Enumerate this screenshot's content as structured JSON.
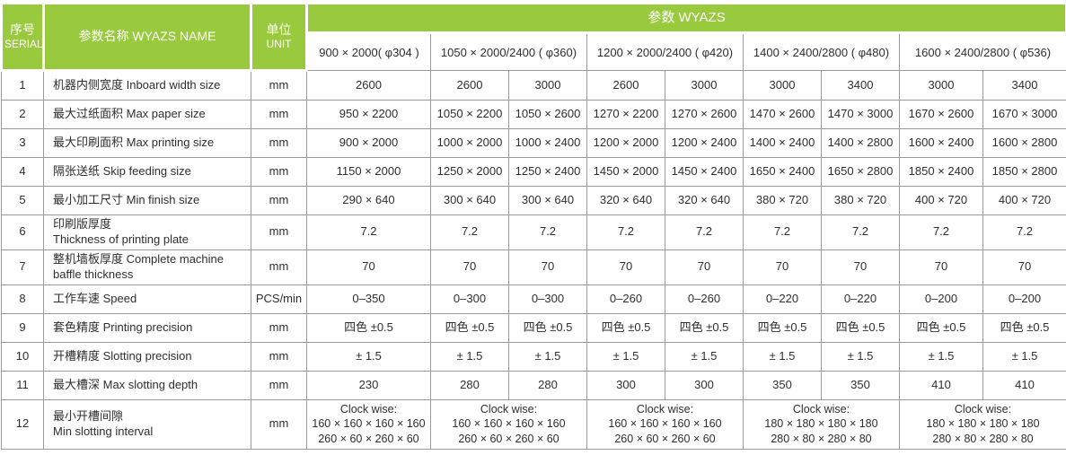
{
  "colors": {
    "header_green": "#99c93c",
    "grid_line": "#999999",
    "header_text": "#ffffff",
    "body_text": "#2e2e2e"
  },
  "table": {
    "header": {
      "serial_zh": "序号",
      "serial_en": "SERIAL",
      "name_label": "参数名称 WYAZS NAME",
      "unit_zh": "单位",
      "unit_en": "UNIT",
      "params_group_label": "参数 WYAZS",
      "models": [
        {
          "label": "900 × 2000( φ304 )",
          "span": 1
        },
        {
          "label": "1050 × 2000/2400 ( φ360)",
          "span": 2
        },
        {
          "label": "1200 × 2000/2400 ( φ420)",
          "span": 2
        },
        {
          "label": "1400 × 2400/2800 ( φ480)",
          "span": 2
        },
        {
          "label": "1600 × 2400/2800 ( φ536)",
          "span": 2
        }
      ]
    },
    "rows": [
      {
        "serial": "1",
        "label_lines": [
          "机器内侧宽度 Inboard width size"
        ],
        "unit": "mm",
        "cells": [
          "2600",
          "2600",
          "3000",
          "2600",
          "3000",
          "3000",
          "3400",
          "3000",
          "3400"
        ]
      },
      {
        "serial": "2",
        "label_lines": [
          "最大过纸面积 Max paper size"
        ],
        "unit": "mm",
        "cells": [
          "950 × 2200",
          "1050 × 2200",
          "1050 × 2600",
          "1270 × 2200",
          "1270 × 2600",
          "1470 × 2600",
          "1470 × 3000",
          "1670 × 2600",
          "1670 × 3000"
        ]
      },
      {
        "serial": "3",
        "label_lines": [
          "最大印刷面积 Max printing size"
        ],
        "unit": "mm",
        "cells": [
          "900 × 2000",
          "1000 × 2000",
          "1000 × 2400",
          "1200 × 2000",
          "1200 × 2400",
          "1400 × 2400",
          "1400 × 2800",
          "1600 × 2400",
          "1600 × 2800"
        ]
      },
      {
        "serial": "4",
        "label_lines": [
          "隔张送纸 Skip feeding size"
        ],
        "unit": "mm",
        "cells": [
          "1150 × 2000",
          "1250 × 2000",
          "1250 × 2400",
          "1450 × 2000",
          "1450 × 2400",
          "1650 × 2400",
          "1650 × 2800",
          "1850 × 2400",
          "1850 × 2800"
        ]
      },
      {
        "serial": "5",
        "label_lines": [
          "最小加工尺寸 Min finish size"
        ],
        "unit": "mm",
        "cells": [
          "290 × 640",
          "300 × 640",
          "300 × 640",
          "320 × 640",
          "320 × 640",
          "380 × 720",
          "380 × 720",
          "400 × 720",
          "400 × 720"
        ]
      },
      {
        "serial": "6",
        "label_lines": [
          "印刷版厚度",
          "Thickness of printing plate"
        ],
        "unit": "mm",
        "cells": [
          "7.2",
          "7.2",
          "7.2",
          "7.2",
          "7.2",
          "7.2",
          "7.2",
          "7.2",
          "7.2"
        ]
      },
      {
        "serial": "7",
        "label_lines": [
          "整机墙板厚度 Complete machine",
          "baffle thickness"
        ],
        "unit": "mm",
        "cells": [
          "70",
          "70",
          "70",
          "70",
          "70",
          "70",
          "70",
          "70",
          "70"
        ]
      },
      {
        "serial": "8",
        "label_lines": [
          "工作车速 Speed"
        ],
        "unit": "PCS/min",
        "cells": [
          "0–350",
          "0–300",
          "0–300",
          "0–260",
          "0–260",
          "0–220",
          "0–220",
          "0–200",
          "0–200"
        ]
      },
      {
        "serial": "9",
        "label_lines": [
          "套色精度 Printing precision"
        ],
        "unit": "mm",
        "cells": [
          "四色 ±0.5",
          "四色 ±0.5",
          "四色 ±0.5",
          "四色 ±0.5",
          "四色 ±0.5",
          "四色 ±0.5",
          "四色 ±0.5",
          "四色 ±0.5",
          "四色 ±0.5"
        ]
      },
      {
        "serial": "10",
        "label_lines": [
          "开槽精度 Slotting precision"
        ],
        "unit": "mm",
        "cells": [
          "± 1.5",
          "± 1.5",
          "± 1.5",
          "± 1.5",
          "± 1.5",
          "± 1.5",
          "± 1.5",
          "± 1.5",
          "± 1.5"
        ]
      },
      {
        "serial": "11",
        "label_lines": [
          "最大槽深 Max slotting depth"
        ],
        "unit": "mm",
        "cells": [
          "230",
          "280",
          "280",
          "300",
          "300",
          "350",
          "350",
          "410",
          "410"
        ]
      },
      {
        "serial": "12",
        "label_lines": [
          "最小开槽间隙",
          "Min slotting interval"
        ],
        "unit": "mm",
        "cells": [
          {
            "lines": [
              "Clock wise:",
              "160 × 160 × 160 × 160",
              "260 × 60 × 260 × 60"
            ],
            "span": 1
          },
          {
            "lines": [
              "Clock wise:",
              "160 × 160 × 160 × 160",
              "260 × 60 × 260 × 60"
            ],
            "span": 2
          },
          {
            "lines": [
              "Clock wise:",
              "160 × 160 × 160 × 160",
              "260 × 60 × 260 × 60"
            ],
            "span": 2
          },
          {
            "lines": [
              "Clock wise:",
              "180 × 180 × 180 × 180",
              "280 × 80 × 280 × 80"
            ],
            "span": 2
          },
          {
            "lines": [
              "Clock wise:",
              "180 × 180 × 180 × 180",
              "280 × 80 × 280 × 80"
            ],
            "span": 2
          }
        ]
      }
    ]
  }
}
